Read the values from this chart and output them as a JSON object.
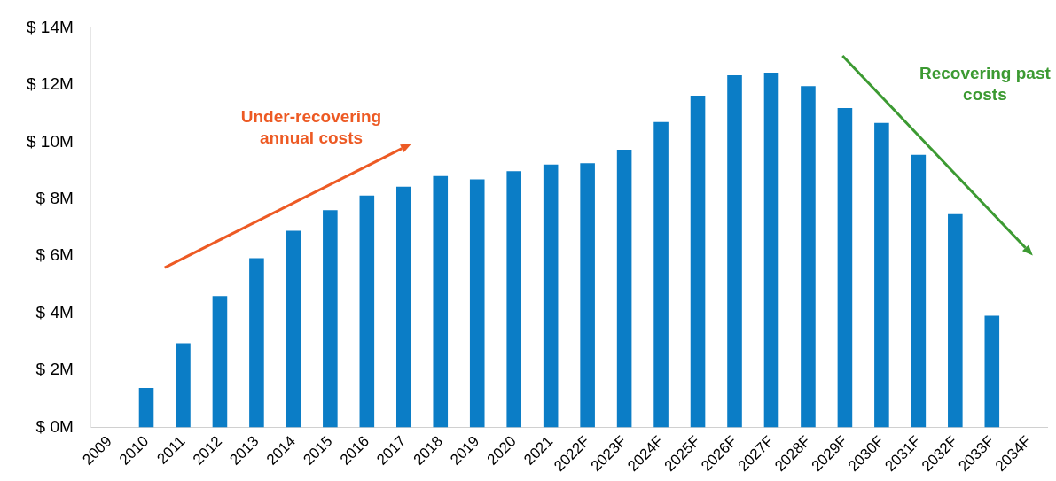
{
  "chart_data": {
    "type": "bar",
    "categories": [
      "2009",
      "2010",
      "2011",
      "2012",
      "2013",
      "2014",
      "2015",
      "2016",
      "2017",
      "2018",
      "2019",
      "2020",
      "2021",
      "2022F",
      "2023F",
      "2024F",
      "2025F",
      "2026F",
      "2027F",
      "2028F",
      "2029F",
      "2030F",
      "2031F",
      "2032F",
      "2033F",
      "2034F"
    ],
    "values": [
      null,
      1.38,
      2.95,
      4.6,
      5.93,
      6.89,
      7.61,
      8.12,
      8.43,
      8.81,
      8.69,
      8.98,
      9.21,
      9.26,
      9.73,
      10.7,
      11.62,
      12.34,
      12.43,
      11.96,
      11.19,
      10.67,
      9.55,
      7.47,
      3.91,
      null
    ],
    "color": "#0b7dc6",
    "ylim": [
      0,
      14
    ],
    "yticks": [
      {
        "value": 0,
        "label": "$ 0M"
      },
      {
        "value": 2,
        "label": "$ 2M"
      },
      {
        "value": 4,
        "label": "$ 4M"
      },
      {
        "value": 6,
        "label": "$ 6M"
      },
      {
        "value": 8,
        "label": "$ 8M"
      },
      {
        "value": 10,
        "label": "$ 10M"
      },
      {
        "value": 12,
        "label": "$ 12M"
      },
      {
        "value": 14,
        "label": "$ 14M"
      }
    ],
    "grid": false,
    "legend": false,
    "annotations": [
      "Under-recovering\nannual costs",
      "Recovering past\ncosts"
    ]
  }
}
